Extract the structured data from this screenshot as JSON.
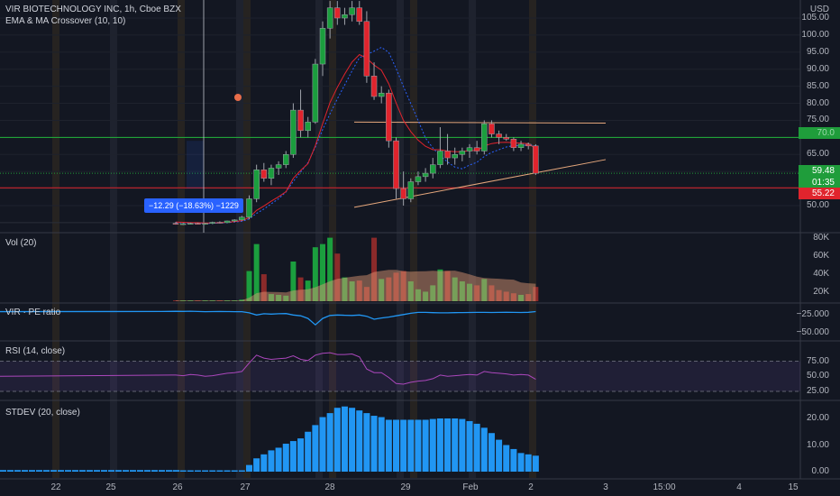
{
  "header": {
    "title": "VIR BIOTECHNOLOGY INC, 1h, Cboe BZX",
    "indicator": "EMA & MA Crossover (10, 10)"
  },
  "price_axis": {
    "currency": "USD",
    "ticks": [
      "105.00",
      "100.00",
      "95.00",
      "90.00",
      "85.00",
      "80.00",
      "75.00",
      "70.00",
      "65.00",
      "60.00",
      "55.00",
      "50.00"
    ],
    "last_price": "59.48",
    "countdown": "01:35",
    "line_price": "55.22",
    "green_line_label": "70.0"
  },
  "panes": {
    "volume": {
      "label": "Vol (20)",
      "ticks": [
        "80K",
        "60K",
        "40K",
        "20K"
      ]
    },
    "pe": {
      "label": "VIR · PE ratio",
      "ticks": [
        "−25.000",
        "−50.000"
      ]
    },
    "rsi": {
      "label": "RSI (14, close)",
      "ticks": [
        "75.00",
        "50.00",
        "25.00"
      ]
    },
    "stdev": {
      "label": "STDEV (20, close)",
      "ticks": [
        "20.00",
        "10.00",
        "0.00"
      ]
    }
  },
  "x_axis": [
    "22",
    "25",
    "26",
    "27",
    "28",
    "29",
    "Feb",
    "2",
    "3",
    "15:00",
    "4",
    "15"
  ],
  "measure_label": "−12.29 (−18.63%) −1229",
  "colors": {
    "bg": "#131722",
    "up": "#26a69a",
    "down": "#ef5350",
    "green_candle": "#1b9e3e",
    "red_candle": "#e0242d"
  },
  "chart_data": {
    "type": "candlestick",
    "title": "VIR BIOTECHNOLOGY INC, 1h, Cboe BZX",
    "candles": [
      [
        44.8,
        45.2,
        44.4,
        44.6
      ],
      [
        44.6,
        44.9,
        44.3,
        44.7
      ],
      [
        44.7,
        45.0,
        44.5,
        44.8
      ],
      [
        44.8,
        45.0,
        44.5,
        44.6
      ],
      [
        44.6,
        44.9,
        44.4,
        44.8
      ],
      [
        44.8,
        45.3,
        44.6,
        45.1
      ],
      [
        45.1,
        45.4,
        44.9,
        45.0
      ],
      [
        45.0,
        45.6,
        44.9,
        45.5
      ],
      [
        45.5,
        46.0,
        45.2,
        45.8
      ],
      [
        45.8,
        47.0,
        45.6,
        46.6
      ],
      [
        46.6,
        53.0,
        46.0,
        52.0
      ],
      [
        52.0,
        62.0,
        51.0,
        60.5
      ],
      [
        60.5,
        62.5,
        57.0,
        58.0
      ],
      [
        58.0,
        62.0,
        56.0,
        61.0
      ],
      [
        61.0,
        63.0,
        59.0,
        62.0
      ],
      [
        62.0,
        66.0,
        61.0,
        65.0
      ],
      [
        65.0,
        80.0,
        64.0,
        78.0
      ],
      [
        78.0,
        84.0,
        70.0,
        72.0
      ],
      [
        72.0,
        76.0,
        70.0,
        74.5
      ],
      [
        74.5,
        93.0,
        74.0,
        91.5
      ],
      [
        91.5,
        104.0,
        88.0,
        102.0
      ],
      [
        102.0,
        110.0,
        99.0,
        108.0
      ],
      [
        108.0,
        110.0,
        103.0,
        105.0
      ],
      [
        105.0,
        108.0,
        103.0,
        106.0
      ],
      [
        106.0,
        110.0,
        104.0,
        108.0
      ],
      [
        108.0,
        110.0,
        103.0,
        104.0
      ],
      [
        104.0,
        107.0,
        86.0,
        88.0
      ],
      [
        88.0,
        92.0,
        81.0,
        82.0
      ],
      [
        82.0,
        85.0,
        80.0,
        83.0
      ],
      [
        83.0,
        84.0,
        67.0,
        69.0
      ],
      [
        69.0,
        70.0,
        52.0,
        55.0
      ],
      [
        55.0,
        60.0,
        50.0,
        52.0
      ],
      [
        52.0,
        58.0,
        51.0,
        57.0
      ],
      [
        57.0,
        60.0,
        56.0,
        58.5
      ],
      [
        58.5,
        61.0,
        57.0,
        59.5
      ],
      [
        59.5,
        64.0,
        58.0,
        62.0
      ],
      [
        62.0,
        73.0,
        61.0,
        66.0
      ],
      [
        66.0,
        71.0,
        62.0,
        64.0
      ],
      [
        64.0,
        67.0,
        62.0,
        65.0
      ],
      [
        65.0,
        67.0,
        63.0,
        66.0
      ],
      [
        66.0,
        68.0,
        64.0,
        67.0
      ],
      [
        67.0,
        69.0,
        65.0,
        66.0
      ],
      [
        66.0,
        75.0,
        65.0,
        74.0
      ],
      [
        74.0,
        75.0,
        70.0,
        71.0
      ],
      [
        71.0,
        72.0,
        68.0,
        70.0
      ],
      [
        70.0,
        71.0,
        69.0,
        69.5
      ],
      [
        69.5,
        70.0,
        66.0,
        67.0
      ],
      [
        67.0,
        69.0,
        66.0,
        68.0
      ],
      [
        68.0,
        68.5,
        66.5,
        67.5
      ],
      [
        67.5,
        68.0,
        59.0,
        59.48
      ]
    ],
    "ema": [
      45.2,
      45.1,
      45.0,
      45.0,
      44.9,
      44.9,
      45.0,
      45.1,
      45.3,
      45.6,
      46.5,
      48.6,
      49.9,
      51.3,
      52.6,
      54.1,
      58.0,
      60.3,
      62.3,
      67.6,
      74.0,
      80.2,
      84.7,
      88.6,
      92.1,
      94.3,
      93.2,
      91.2,
      89.7,
      85.7,
      80.1,
      75.0,
      71.7,
      69.2,
      67.4,
      66.4,
      66.4,
      66.0,
      65.8,
      65.8,
      66.2,
      66.1,
      67.5,
      68.2,
      68.5,
      68.6,
      68.4,
      68.3,
      68.2,
      66.7
    ],
    "ma": [
      45.0,
      45.0,
      44.9,
      44.9,
      44.8,
      44.8,
      44.9,
      45.0,
      45.2,
      45.4,
      46.1,
      47.7,
      49.0,
      50.5,
      52.0,
      54.0,
      57.1,
      59.8,
      62.6,
      67.2,
      72.3,
      76.9,
      81.3,
      85.4,
      89.5,
      93.4,
      94.3,
      95.3,
      96.4,
      94.9,
      90.2,
      84.9,
      79.9,
      75.0,
      69.8,
      66.9,
      64.6,
      62.8,
      61.3,
      60.8,
      61.9,
      62.7,
      64.4,
      65.6,
      66.4,
      67.2,
      67.6,
      67.6,
      67.8,
      67.5
    ],
    "volume": [
      1,
      1,
      1,
      1,
      1,
      1,
      1,
      1,
      1,
      2,
      38,
      72,
      34,
      9,
      8,
      7,
      50,
      30,
      26,
      68,
      72,
      80,
      60,
      30,
      25,
      26,
      18,
      80,
      28,
      30,
      36,
      38,
      25,
      15,
      12,
      20,
      40,
      38,
      30,
      25,
      22,
      20,
      28,
      20,
      14,
      12,
      10,
      8,
      9,
      18
    ],
    "pe_ratio": [
      -25.2,
      -25.3,
      -25.1,
      -25.4,
      -25.6,
      -25.5,
      -25.4,
      -25.5,
      -25.6,
      -25.6,
      -27.0,
      -29.5,
      -28.0,
      -28.5,
      -28.0,
      -27.8,
      -29.5,
      -30.5,
      -33.5,
      -41.0,
      -33.5,
      -30.0,
      -29.5,
      -29.8,
      -30.0,
      -29.5,
      -31.0,
      -34.5,
      -33.0,
      -32.0,
      -30.5,
      -29.0,
      -27.5,
      -26.5,
      -26.5,
      -26.8,
      -27.0,
      -27.0,
      -26.8,
      -26.7,
      -26.6,
      -26.5,
      -26.5,
      -26.6,
      -26.5,
      -26.4,
      -26.5,
      -26.6,
      -26.4,
      -25.5
    ],
    "rsi": [
      52,
      51,
      53,
      52,
      50,
      51,
      53,
      55,
      56,
      58,
      72,
      85,
      80,
      78,
      79,
      80,
      84,
      78,
      76,
      85,
      88,
      89,
      86,
      86,
      87,
      82,
      62,
      56,
      56,
      48,
      38,
      37,
      40,
      42,
      43,
      46,
      52,
      50,
      51,
      52,
      53,
      52,
      58,
      56,
      55,
      54,
      52,
      53,
      52,
      45
    ],
    "stdev": [
      0.5,
      0.5,
      0.5,
      0.5,
      0.5,
      0.5,
      0.5,
      0.5,
      0.5,
      0.5,
      2.5,
      5.0,
      6.5,
      8.0,
      9.0,
      10.5,
      11.5,
      12.5,
      15.0,
      17.5,
      20.5,
      22.0,
      24.0,
      24.5,
      24.0,
      23.0,
      22.0,
      21.0,
      20.5,
      19.5,
      19.5,
      19.5,
      19.5,
      19.5,
      19.5,
      19.8,
      20.0,
      20.0,
      20.0,
      19.8,
      19.0,
      18.0,
      16.5,
      14.5,
      12.0,
      10.0,
      8.5,
      7.0,
      6.5,
      6.0
    ],
    "ylim_price": [
      47,
      110
    ],
    "hlines": [
      70.0,
      55.22
    ]
  }
}
